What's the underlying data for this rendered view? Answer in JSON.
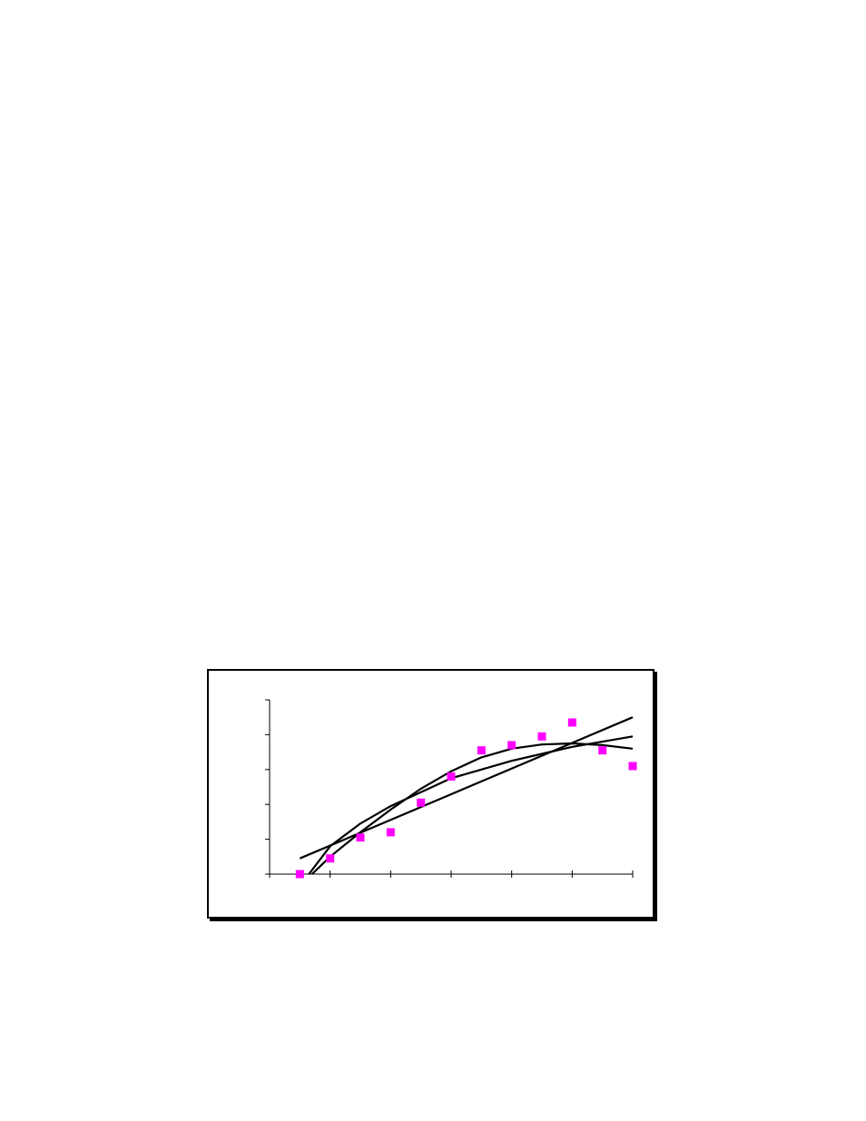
{
  "chart_data": {
    "type": "scatter",
    "xlim": [
      0,
      12
    ],
    "ylim": [
      0,
      5
    ],
    "x_ticks": [
      0,
      2,
      4,
      6,
      8,
      10,
      12
    ],
    "y_ticks": [
      0,
      1,
      2,
      3,
      4,
      5
    ],
    "tick_labels_shown": false,
    "grid": false,
    "legend": "none",
    "points": {
      "color": "#ff00ff",
      "x": [
        1,
        2,
        3,
        4,
        5,
        6,
        7,
        8,
        9,
        10,
        11,
        12
      ],
      "y": [
        0.0,
        0.45,
        1.05,
        1.2,
        2.05,
        2.8,
        3.55,
        3.7,
        3.95,
        4.35,
        3.55,
        3.1
      ]
    },
    "trendlines": [
      {
        "kind": "linear",
        "color": "#000000",
        "x": [
          1,
          12
        ],
        "y": [
          0.45,
          4.5
        ]
      },
      {
        "kind": "logarithmic",
        "color": "#000000",
        "x": [
          1.3,
          2,
          3,
          4,
          5,
          6,
          7,
          8,
          9,
          10,
          11,
          12
        ],
        "y": [
          0.0,
          0.8,
          1.45,
          1.95,
          2.35,
          2.75,
          3.0,
          3.25,
          3.45,
          3.65,
          3.8,
          3.95
        ]
      },
      {
        "kind": "polynomial",
        "color": "#000000",
        "x": [
          1.4,
          2,
          3,
          4,
          5,
          6,
          7,
          8,
          9,
          10,
          11,
          12
        ],
        "y": [
          0.0,
          0.5,
          1.2,
          1.85,
          2.45,
          2.95,
          3.35,
          3.6,
          3.72,
          3.75,
          3.7,
          3.6
        ]
      }
    ]
  }
}
